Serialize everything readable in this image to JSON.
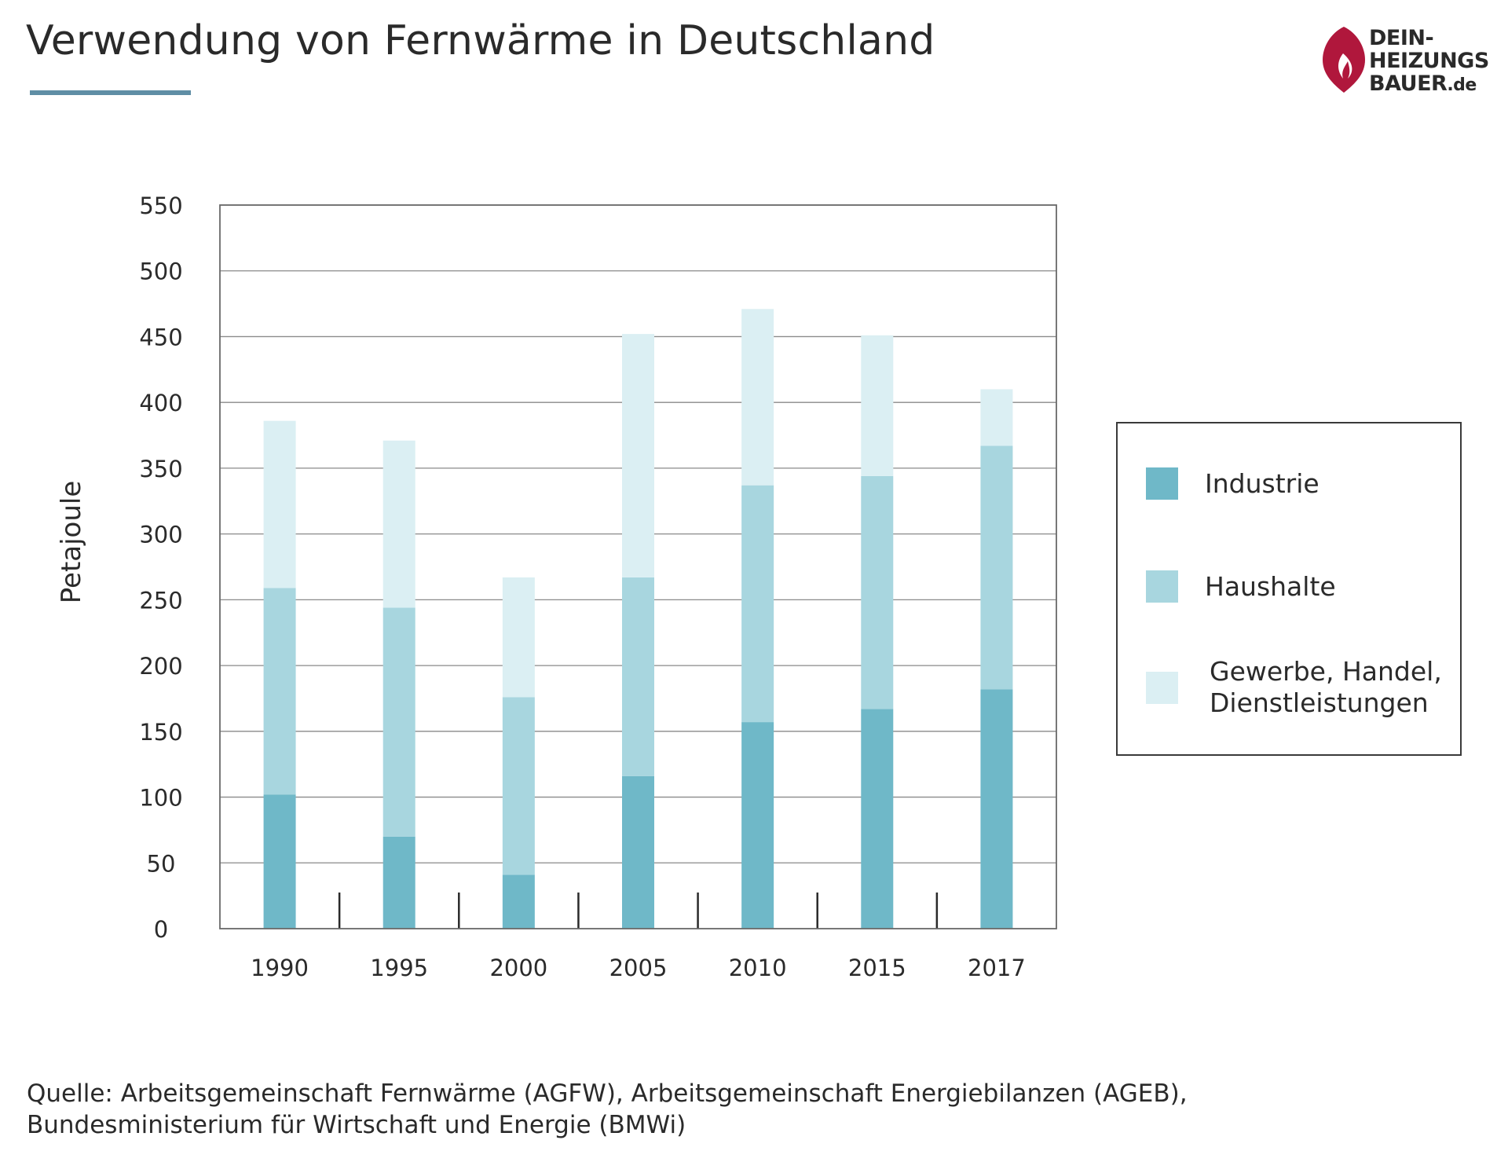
{
  "header": {
    "title": "Verwendung von Fernwärme in Deutschland",
    "logo_lines": [
      "DEIN-",
      "HEIZUNGS",
      "BAUER"
    ],
    "logo_suffix": ".de",
    "logo_icon": "flame-drop-icon",
    "logo_color": "#b0173c"
  },
  "colors": {
    "industrie": "#6fb8c8",
    "haushalte": "#a8d6df",
    "gewerbe": "#dbeff3",
    "accent_line": "#5f8ea5"
  },
  "chart_data": {
    "type": "bar",
    "stacked": true,
    "title": "",
    "xlabel": "",
    "ylabel": "Petajoule",
    "ylim": [
      0,
      550
    ],
    "yticks": [
      0,
      50,
      100,
      150,
      200,
      250,
      300,
      350,
      400,
      450,
      500,
      550
    ],
    "grid": true,
    "legend_position": "right",
    "categories": [
      "1990",
      "1995",
      "2000",
      "2005",
      "2010",
      "2015",
      "2017"
    ],
    "series": [
      {
        "name": "Industrie",
        "values": [
          102,
          70,
          41,
          116,
          157,
          167,
          182
        ]
      },
      {
        "name": "Haushalte",
        "values": [
          157,
          174,
          135,
          151,
          180,
          177,
          185
        ]
      },
      {
        "name": "Gewerbe, Handel, Dienstleistungen",
        "values": [
          127,
          127,
          91,
          185,
          134,
          107,
          43
        ]
      }
    ]
  },
  "legend": {
    "items": [
      {
        "lines": [
          "Industrie"
        ]
      },
      {
        "lines": [
          "Haushalte"
        ]
      },
      {
        "lines": [
          "Gewerbe, Handel,",
          "Dienstleistungen"
        ]
      }
    ]
  },
  "source": {
    "line1": "Quelle: Arbeitsgemeinschaft Fernwärme (AGFW), Arbeitsgemeinschaft Energiebilanzen (AGEB),",
    "line2": "Bundesministerium für Wirtschaft und Energie (BMWi)"
  }
}
